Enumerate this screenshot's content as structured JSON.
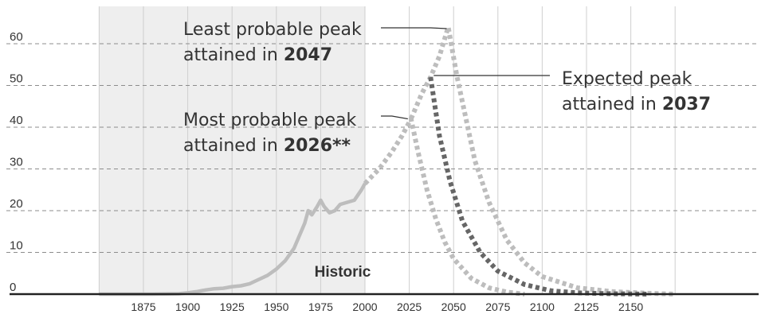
{
  "chart_data": {
    "type": "line",
    "unit_label": "",
    "xlim": [
      1850,
      2180
    ],
    "ylim": [
      0,
      70
    ],
    "x_ticks": [
      1875,
      1900,
      1925,
      1950,
      1975,
      2000,
      2025,
      2050,
      2075,
      2100,
      2125,
      2150
    ],
    "y_ticks": [
      0,
      10,
      20,
      30,
      40,
      50,
      60
    ],
    "grid": true,
    "historic_region": {
      "x_start": 1850,
      "x_end": 2000,
      "label": "Historic"
    },
    "series": [
      {
        "style": "solid",
        "color": "#bdbdbd",
        "points": [
          [
            1850,
            0
          ],
          [
            1880,
            0
          ],
          [
            1895,
            0.1
          ],
          [
            1900,
            0.3
          ],
          [
            1905,
            0.6
          ],
          [
            1910,
            1.0
          ],
          [
            1915,
            1.3
          ],
          [
            1920,
            1.4
          ],
          [
            1925,
            1.8
          ],
          [
            1930,
            2.0
          ],
          [
            1935,
            2.5
          ],
          [
            1940,
            3.5
          ],
          [
            1945,
            4.5
          ],
          [
            1950,
            6.0
          ],
          [
            1955,
            8.0
          ],
          [
            1960,
            11.0
          ],
          [
            1963,
            14.0
          ],
          [
            1966,
            17.0
          ],
          [
            1968,
            20.0
          ],
          [
            1970,
            19.0
          ],
          [
            1973,
            21.0
          ],
          [
            1975,
            22.5
          ],
          [
            1977,
            21.0
          ],
          [
            1980,
            19.5
          ],
          [
            1983,
            20.0
          ],
          [
            1986,
            21.5
          ],
          [
            1990,
            22.0
          ],
          [
            1994,
            22.5
          ],
          [
            1998,
            25.0
          ],
          [
            2000,
            26.5
          ]
        ]
      },
      {
        "style": "dotted",
        "color": "#bdbdbd",
        "points": [
          [
            2000,
            26.5
          ],
          [
            2008,
            30.0
          ],
          [
            2015,
            34.0
          ],
          [
            2021,
            38.0
          ],
          [
            2026,
            42.0
          ],
          [
            2030,
            34.0
          ],
          [
            2035,
            25.0
          ],
          [
            2040,
            18.0
          ],
          [
            2045,
            12.5
          ],
          [
            2050,
            8.5
          ],
          [
            2060,
            3.8
          ],
          [
            2070,
            1.5
          ],
          [
            2080,
            0.5
          ],
          [
            2090,
            0
          ]
        ]
      },
      {
        "style": "dotted",
        "color": "#bdbdbd",
        "points": [
          [
            2026,
            42.0
          ],
          [
            2032,
            48.0
          ],
          [
            2037,
            52.0
          ],
          [
            2042,
            57.0
          ],
          [
            2047,
            64.0
          ],
          [
            2052,
            52.0
          ],
          [
            2057,
            42.0
          ],
          [
            2062,
            32.0
          ],
          [
            2070,
            22.0
          ],
          [
            2080,
            13.0
          ],
          [
            2090,
            7.5
          ],
          [
            2100,
            4.2
          ],
          [
            2120,
            1.5
          ],
          [
            2140,
            0.6
          ],
          [
            2160,
            0.2
          ],
          [
            2175,
            0
          ]
        ]
      },
      {
        "style": "dotted",
        "color": "#666666",
        "points": [
          [
            2037,
            52.0
          ],
          [
            2042,
            38.0
          ],
          [
            2048,
            27.0
          ],
          [
            2055,
            17.5
          ],
          [
            2065,
            10.0
          ],
          [
            2075,
            5.5
          ],
          [
            2090,
            2.3
          ],
          [
            2105,
            0.8
          ],
          [
            2120,
            0.3
          ],
          [
            2140,
            0.1
          ],
          [
            2160,
            0
          ]
        ]
      }
    ],
    "annotations": [
      {
        "line1": "Least probable peak",
        "line2_prefix": "attained in ",
        "line2_bold": "2047",
        "point": [
          2047,
          64
        ]
      },
      {
        "line1": "Most probable peak",
        "line2_prefix": "attained in ",
        "line2_bold": "2026**",
        "point": [
          2026,
          42
        ]
      },
      {
        "line1": "Expected peak",
        "line2_prefix": "attained in ",
        "line2_bold": "2037",
        "point": [
          2037,
          52
        ]
      }
    ]
  }
}
